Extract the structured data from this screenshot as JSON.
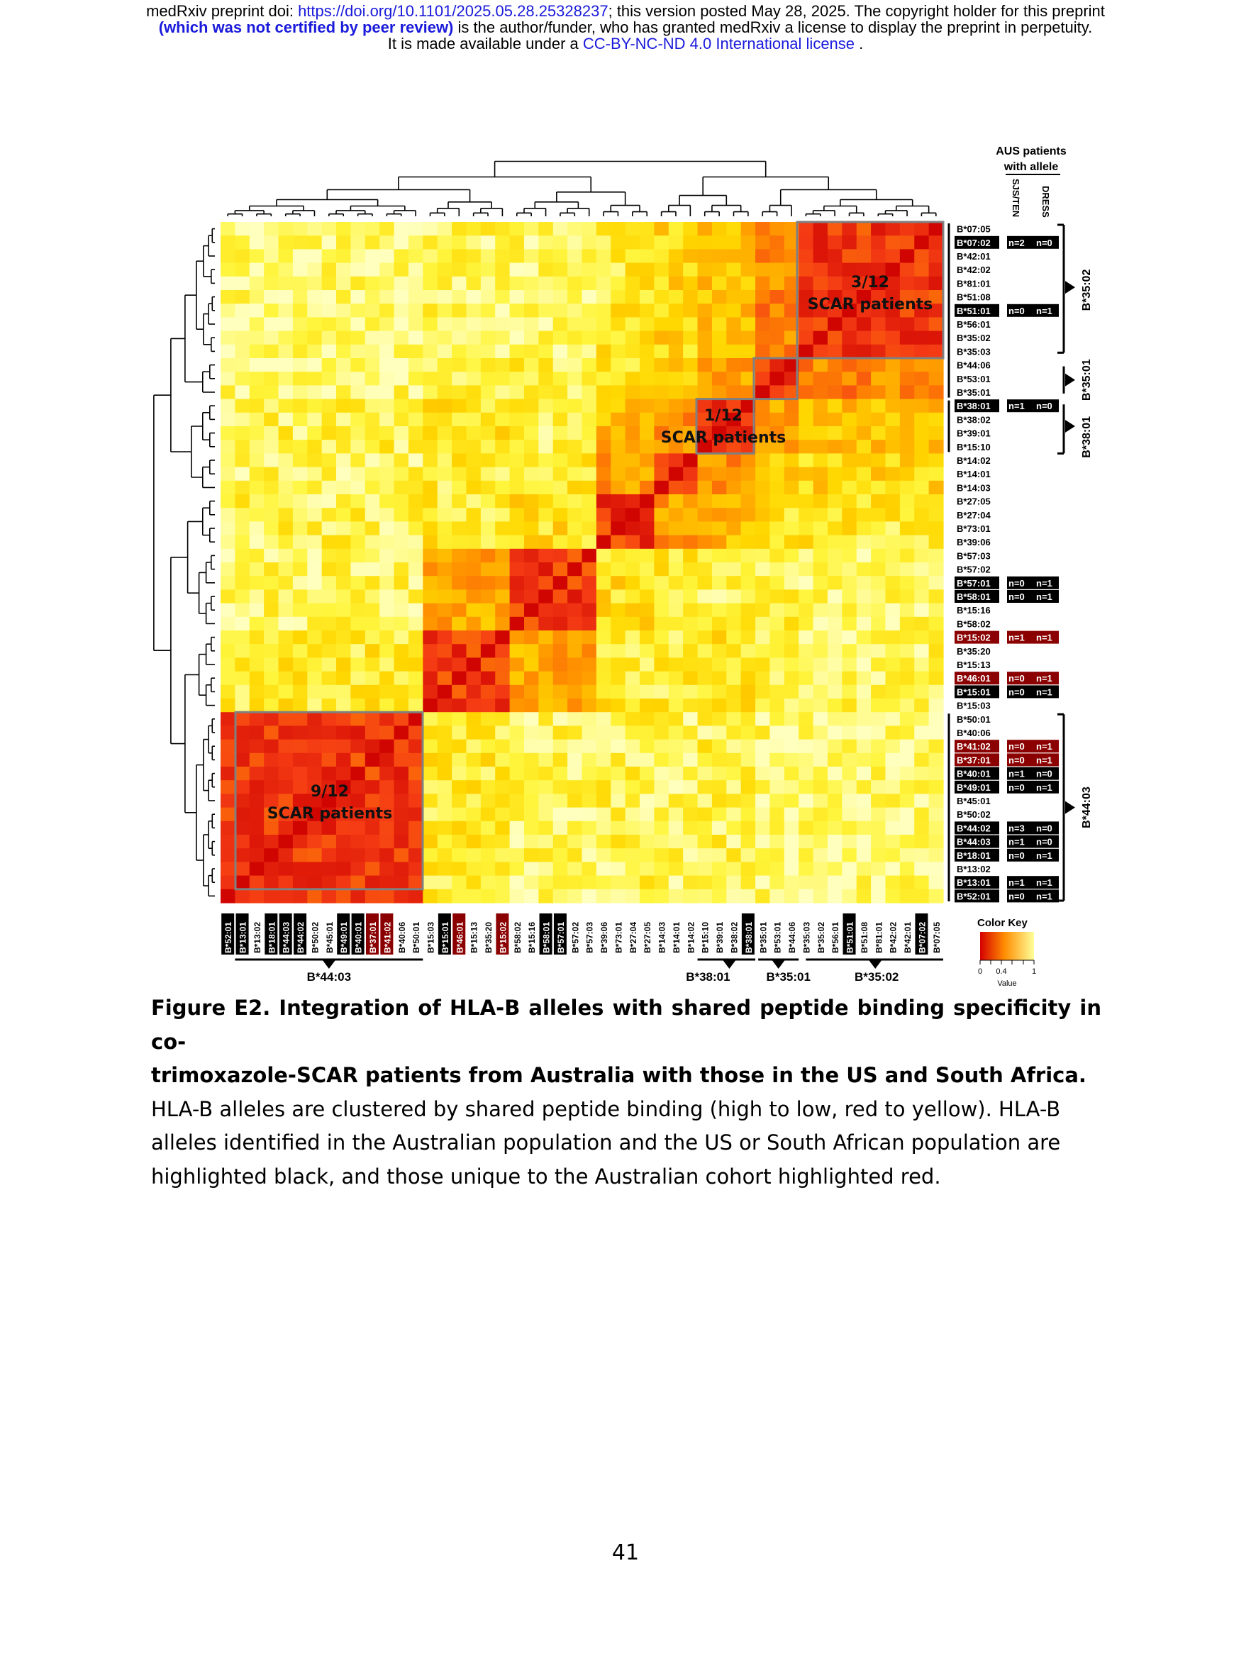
{
  "header": {
    "line1_prefix": "medRxiv preprint doi: ",
    "line1_link": "https://doi.org/10.1101/2025.05.28.25328237",
    "line1_suffix": "; this version posted May 28, 2025. The copyright holder for this preprint",
    "line2_bold": "(which was not certified by peer review)",
    "line2_rest": " is the author/funder, who has granted medRxiv a license to display the preprint in perpetuity.",
    "line3_prefix": "It is made available under a ",
    "line3_link": "CC-BY-NC-ND 4.0 International license",
    "line3_suffix": " ."
  },
  "figure": {
    "aus_header_line1": "AUS patients",
    "aus_header_line2": "with allele",
    "col_sjs": "SJS/TEN",
    "col_dress": "DRESS",
    "color_key_title": "Color Key",
    "color_key_value": "Value",
    "color_key_ticks": [
      "0",
      "0.4",
      "1"
    ],
    "colors": {
      "high": "#d60000",
      "mid": "#ff8c00",
      "low": "#ffff9a",
      "box": "#808080",
      "black_label": "#000000",
      "red_label": "#8b0000"
    },
    "boxes": [
      {
        "fraction": "3/12",
        "label": "SCAR patients"
      },
      {
        "fraction": "1/12",
        "label": "SCAR patients"
      },
      {
        "fraction": "9/12",
        "label": "SCAR patients"
      }
    ],
    "right_groups": [
      "B*35:02",
      "B*35:01",
      "B*38:01",
      "B*44:03"
    ],
    "bottom_groups": [
      "B*44:03",
      "B*38:01",
      "B*35:01",
      "B*35:02"
    ],
    "rows": [
      {
        "allele": "B*07:05",
        "hl": ""
      },
      {
        "allele": "B*07:02",
        "hl": "black",
        "sjs": "n=2",
        "dress": "n=0"
      },
      {
        "allele": "B*42:01",
        "hl": ""
      },
      {
        "allele": "B*42:02",
        "hl": ""
      },
      {
        "allele": "B*81:01",
        "hl": ""
      },
      {
        "allele": "B*51:08",
        "hl": ""
      },
      {
        "allele": "B*51:01",
        "hl": "black",
        "sjs": "n=0",
        "dress": "n=1"
      },
      {
        "allele": "B*56:01",
        "hl": ""
      },
      {
        "allele": "B*35:02",
        "hl": ""
      },
      {
        "allele": "B*35:03",
        "hl": ""
      },
      {
        "allele": "B*44:06",
        "hl": ""
      },
      {
        "allele": "B*53:01",
        "hl": ""
      },
      {
        "allele": "B*35:01",
        "hl": ""
      },
      {
        "allele": "B*38:01",
        "hl": "black",
        "sjs": "n=1",
        "dress": "n=0"
      },
      {
        "allele": "B*38:02",
        "hl": ""
      },
      {
        "allele": "B*39:01",
        "hl": ""
      },
      {
        "allele": "B*15:10",
        "hl": ""
      },
      {
        "allele": "B*14:02",
        "hl": ""
      },
      {
        "allele": "B*14:01",
        "hl": ""
      },
      {
        "allele": "B*14:03",
        "hl": ""
      },
      {
        "allele": "B*27:05",
        "hl": ""
      },
      {
        "allele": "B*27:04",
        "hl": ""
      },
      {
        "allele": "B*73:01",
        "hl": ""
      },
      {
        "allele": "B*39:06",
        "hl": ""
      },
      {
        "allele": "B*57:03",
        "hl": ""
      },
      {
        "allele": "B*57:02",
        "hl": ""
      },
      {
        "allele": "B*57:01",
        "hl": "black",
        "sjs": "n=0",
        "dress": "n=1"
      },
      {
        "allele": "B*58:01",
        "hl": "black",
        "sjs": "n=0",
        "dress": "n=1"
      },
      {
        "allele": "B*15:16",
        "hl": ""
      },
      {
        "allele": "B*58:02",
        "hl": ""
      },
      {
        "allele": "B*15:02",
        "hl": "red",
        "sjs": "n=1",
        "dress": "n=1"
      },
      {
        "allele": "B*35:20",
        "hl": ""
      },
      {
        "allele": "B*15:13",
        "hl": ""
      },
      {
        "allele": "B*46:01",
        "hl": "red",
        "sjs": "n=0",
        "dress": "n=1"
      },
      {
        "allele": "B*15:01",
        "hl": "black",
        "sjs": "n=0",
        "dress": "n=1"
      },
      {
        "allele": "B*15:03",
        "hl": ""
      },
      {
        "allele": "B*50:01",
        "hl": ""
      },
      {
        "allele": "B*40:06",
        "hl": ""
      },
      {
        "allele": "B*41:02",
        "hl": "red",
        "sjs": "n=0",
        "dress": "n=1"
      },
      {
        "allele": "B*37:01",
        "hl": "red",
        "sjs": "n=0",
        "dress": "n=1"
      },
      {
        "allele": "B*40:01",
        "hl": "black",
        "sjs": "n=1",
        "dress": "n=0"
      },
      {
        "allele": "B*49:01",
        "hl": "black",
        "sjs": "n=0",
        "dress": "n=1"
      },
      {
        "allele": "B*45:01",
        "hl": ""
      },
      {
        "allele": "B*50:02",
        "hl": ""
      },
      {
        "allele": "B*44:02",
        "hl": "black",
        "sjs": "n=3",
        "dress": "n=0"
      },
      {
        "allele": "B*44:03",
        "hl": "black",
        "sjs": "n=1",
        "dress": "n=0"
      },
      {
        "allele": "B*18:01",
        "hl": "black",
        "sjs": "n=0",
        "dress": "n=1"
      },
      {
        "allele": "B*13:02",
        "hl": ""
      },
      {
        "allele": "B*13:01",
        "hl": "black",
        "sjs": "n=1",
        "dress": "n=1"
      },
      {
        "allele": "B*52:01",
        "hl": "black",
        "sjs": "n=0",
        "dress": "n=1"
      }
    ]
  },
  "caption": {
    "title_line1": "Figure E2. Integration of HLA-B alleles with shared peptide binding specificity in co-",
    "title_line2": "trimoxazole-SCAR patients from Australia with those in the US and South Africa.",
    "body": "HLA-B alleles are clustered by shared peptide binding (high to low, red to yellow). HLA-B alleles identified in the Australian population and the US or South African population are highlighted black, and those unique to the Australian cohort highlighted red."
  },
  "page_number": "41"
}
